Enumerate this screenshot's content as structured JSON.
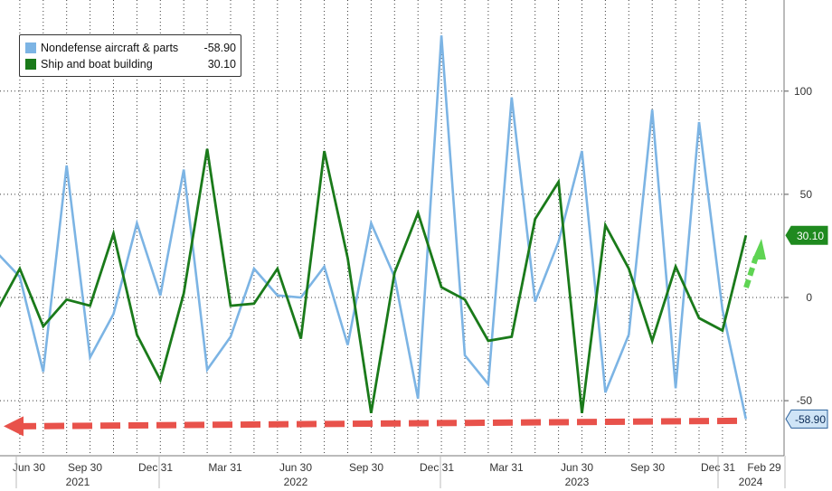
{
  "chart_data": {
    "type": "line",
    "title": "",
    "xlabel": "",
    "ylabel": "",
    "ylim": [
      -75,
      145
    ],
    "y_ticks": [
      -50,
      0,
      50,
      100
    ],
    "y_tick_labels": [
      "-50",
      "0",
      "50",
      "100"
    ],
    "grid": true,
    "legend_position": "top-left",
    "x_tick_labels": [
      "Jun 30",
      "Sep 30",
      "Dec 31",
      "Mar 31",
      "Jun 30",
      "Sep 30",
      "Dec 31",
      "Mar 31",
      "Jun 30",
      "Sep 30",
      "Dec 31",
      "Feb 29"
    ],
    "year_labels": [
      "2021",
      "2022",
      "2023",
      "2024"
    ],
    "series": [
      {
        "name": "Nondefense aircraft & parts",
        "color": "#7cb4e4",
        "last_value": "-58.90",
        "values": [
          22,
          10,
          -36,
          64,
          -29,
          -8,
          36,
          1,
          62,
          -35,
          -19,
          14,
          1,
          0,
          15,
          -23,
          36,
          10,
          -49,
          127,
          -28,
          -42,
          97,
          -2,
          27,
          71,
          -46,
          -18,
          91,
          -44,
          85,
          -6,
          -58.9
        ]
      },
      {
        "name": "Ship and boat building",
        "color": "#1a7a1a",
        "last_value": "30.10",
        "values": [
          -7,
          14,
          -14,
          -1,
          -4,
          31,
          -18,
          -40,
          2,
          72,
          -4,
          -3,
          14,
          -20,
          71,
          19,
          -56,
          12,
          41,
          5,
          -1,
          -21,
          -19,
          38,
          56,
          -56,
          35,
          14,
          -21,
          15,
          -10,
          -16,
          30.1
        ]
      }
    ],
    "annotations": {
      "label_aircraft": "-58.90",
      "label_ship": "30.10"
    }
  }
}
